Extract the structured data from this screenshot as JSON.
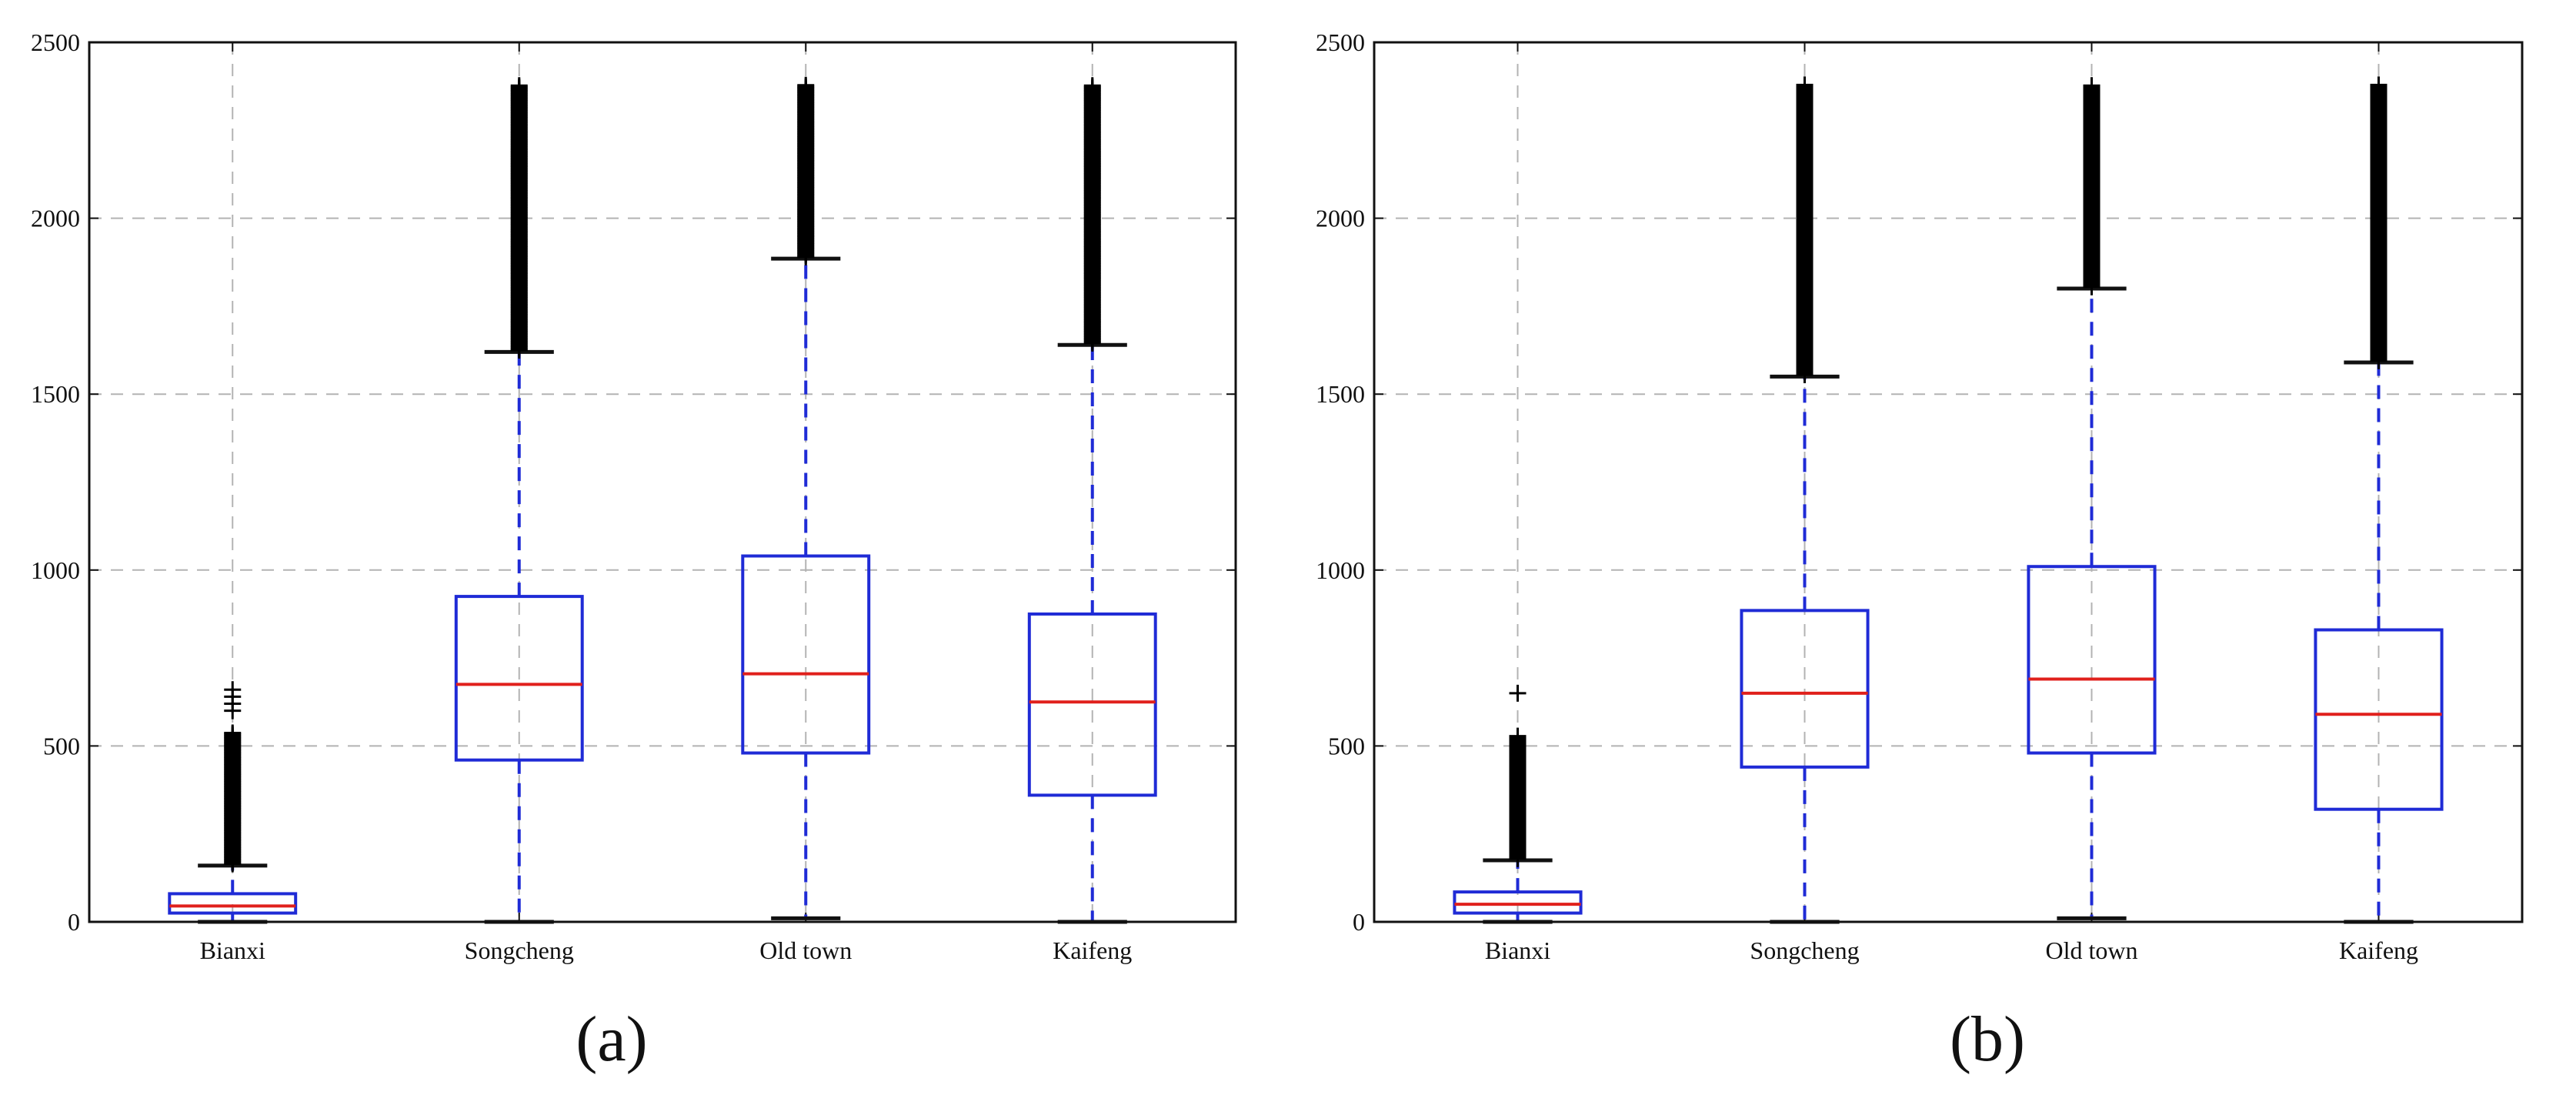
{
  "chart_data": [
    {
      "type": "boxplot",
      "panel_label": "(a)",
      "categories": [
        "Bianxi",
        "Songcheng",
        "Old town",
        "Kaifeng"
      ],
      "y_ticks": [
        "0",
        "500",
        "1000",
        "1500",
        "2000",
        "2500"
      ],
      "ylim": [
        0,
        2500
      ],
      "grid": true,
      "xlabel": "",
      "ylabel": "",
      "title": "",
      "colors": {
        "box": "#1f2bd6",
        "median": "#e0201c",
        "whisker": "#1f2bd6",
        "outlier": "#000000",
        "grid": "#b3b3b3"
      },
      "boxes": [
        {
          "name": "Bianxi",
          "whisker_low": 0,
          "q1": 25,
          "median": 45,
          "q3": 80,
          "whisker_high": 160,
          "outliers_from": 165,
          "outliers_to": 540,
          "extra_outliers": [
            600,
            620,
            640,
            660
          ]
        },
        {
          "name": "Songcheng",
          "whisker_low": 0,
          "q1": 460,
          "median": 675,
          "q3": 925,
          "whisker_high": 1620,
          "outliers_from": 1625,
          "outliers_to": 2380,
          "extra_outliers": []
        },
        {
          "name": "Old town",
          "whisker_low": 10,
          "q1": 480,
          "median": 705,
          "q3": 1040,
          "whisker_high": 1885,
          "outliers_from": 1890,
          "outliers_to": 2380,
          "extra_outliers": []
        },
        {
          "name": "Kaifeng",
          "whisker_low": 0,
          "q1": 360,
          "median": 625,
          "q3": 875,
          "whisker_high": 1640,
          "outliers_from": 1645,
          "outliers_to": 2380,
          "extra_outliers": []
        }
      ]
    },
    {
      "type": "boxplot",
      "panel_label": "(b)",
      "categories": [
        "Bianxi",
        "Songcheng",
        "Old town",
        "Kaifeng"
      ],
      "y_ticks": [
        "0",
        "500",
        "1000",
        "1500",
        "2000",
        "2500"
      ],
      "ylim": [
        0,
        2500
      ],
      "grid": true,
      "xlabel": "",
      "ylabel": "",
      "title": "",
      "colors": {
        "box": "#1f2bd6",
        "median": "#e0201c",
        "whisker": "#1f2bd6",
        "outlier": "#000000",
        "grid": "#b3b3b3"
      },
      "boxes": [
        {
          "name": "Bianxi",
          "whisker_low": 0,
          "q1": 25,
          "median": 50,
          "q3": 85,
          "whisker_high": 175,
          "outliers_from": 180,
          "outliers_to": 530,
          "extra_outliers": [
            650
          ]
        },
        {
          "name": "Songcheng",
          "whisker_low": 0,
          "q1": 440,
          "median": 650,
          "q3": 885,
          "whisker_high": 1550,
          "outliers_from": 1555,
          "outliers_to": 2380,
          "extra_outliers": []
        },
        {
          "name": "Old town",
          "whisker_low": 10,
          "q1": 480,
          "median": 690,
          "q3": 1010,
          "whisker_high": 1800,
          "outliers_from": 1805,
          "outliers_to": 2380,
          "extra_outliers": []
        },
        {
          "name": "Kaifeng",
          "whisker_low": 0,
          "q1": 320,
          "median": 590,
          "q3": 830,
          "whisker_high": 1590,
          "outliers_from": 1595,
          "outliers_to": 2380,
          "extra_outliers": []
        }
      ]
    }
  ]
}
